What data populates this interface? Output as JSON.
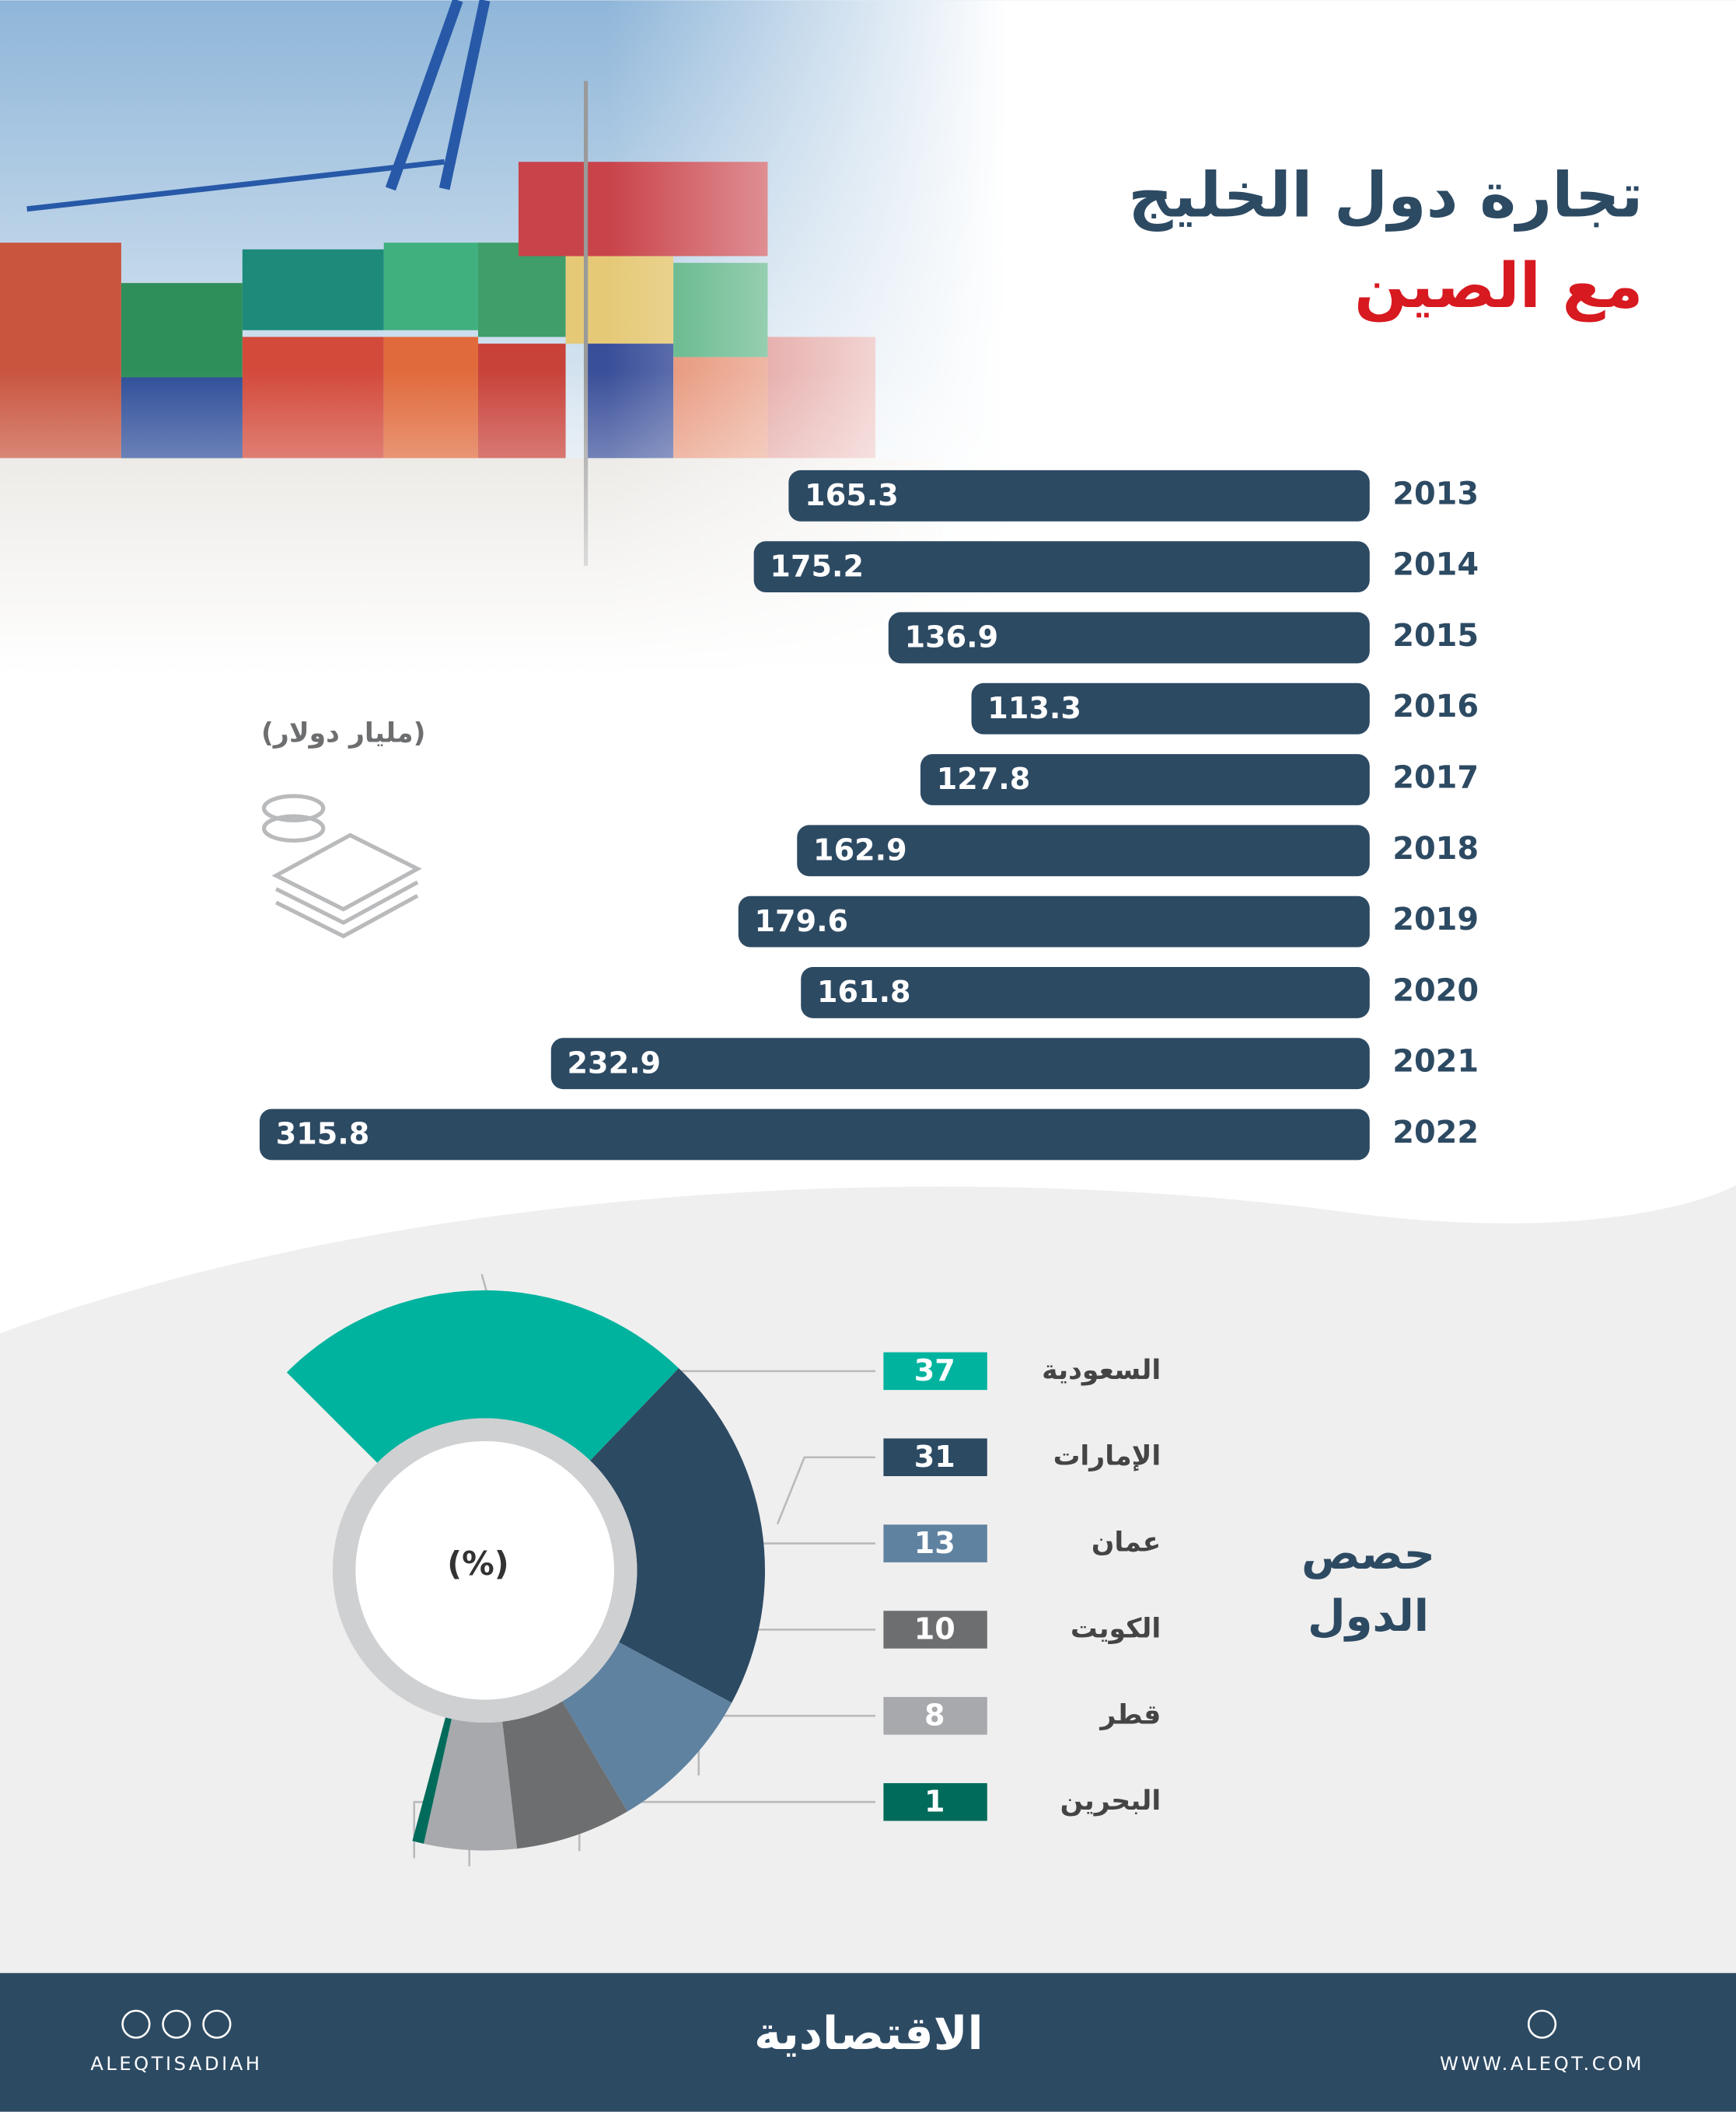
{
  "header": {
    "title": "تجارة دول الخليج",
    "subtitle": "مع الصين"
  },
  "chart_data": [
    {
      "type": "bar",
      "orientation": "horizontal",
      "unit": "(مليار دولار)",
      "categories": [
        "2013",
        "2014",
        "2015",
        "2016",
        "2017",
        "2018",
        "2019",
        "2020",
        "2021",
        "2022"
      ],
      "values": [
        165.3,
        175.2,
        136.9,
        113.3,
        127.8,
        162.9,
        179.6,
        161.8,
        232.9,
        315.8
      ],
      "color": "#2d4a63"
    },
    {
      "type": "donut",
      "title": "حصص الدول",
      "center_label": "(%)",
      "categories": [
        "السعودية",
        "الإمارات",
        "عمان",
        "الكويت",
        "قطر",
        "البحرين"
      ],
      "values": [
        37,
        31,
        13,
        10,
        8,
        1
      ],
      "colors": [
        "#00b39e",
        "#2d4a63",
        "#5f82a0",
        "#6d6e70",
        "#a7a9ac",
        "#006b5a"
      ]
    }
  ],
  "footer": {
    "handle": "ALEQTISADIAH",
    "logo": "الاقتصادية",
    "website": "WWW.ALEQT.COM"
  }
}
